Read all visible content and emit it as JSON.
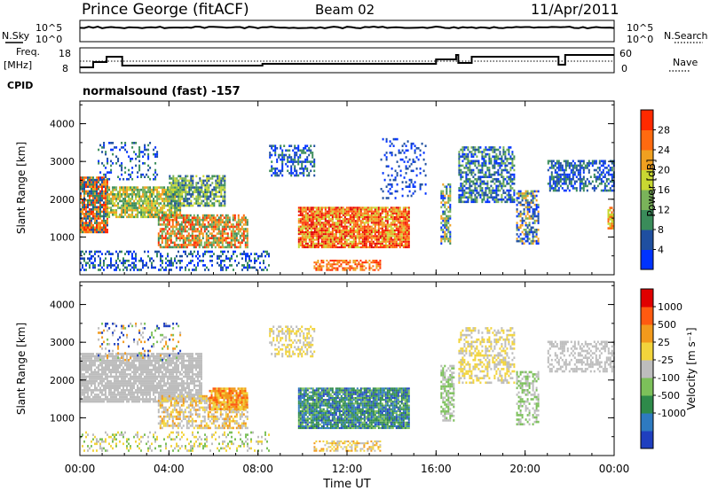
{
  "header": {
    "station": "Prince George (fitACF)",
    "beam": "Beam 02",
    "date": "11/Apr/2011"
  },
  "top_panels": {
    "left_labels": {
      "nsky": "N.Sky",
      "freq": "Freq.",
      "freq_unit": "[MHz]",
      "cpid": "CPID"
    },
    "right_labels": {
      "nsearch": "N.Search",
      "nave": "Nave"
    },
    "noise_ticks": {
      "high": "10^5",
      "low": "10^0"
    },
    "freq_ticks": [
      "18",
      "8"
    ],
    "nave_ticks": [
      "60",
      "0"
    ],
    "cpid_text": "normalsound (fast) -157"
  },
  "colors": {
    "power": [
      "#0033ff",
      "#1f4fa0",
      "#3a8c5a",
      "#7ab35a",
      "#c8d832",
      "#f0a020",
      "#ff6a10",
      "#ff2a00",
      "#e00000"
    ],
    "velocity": [
      "#1f3fbf",
      "#2e7ac0",
      "#2e8a4a",
      "#7cc05a",
      "#bdbdbd",
      "#f2d43c",
      "#f29a1c",
      "#ff5a10",
      "#e00000"
    ]
  },
  "chart_data": [
    {
      "type": "heatmap",
      "name": "power",
      "ylabel": "Slant Range [km]",
      "yticks": [
        "1000",
        "2000",
        "3000",
        "4000"
      ],
      "colorbar_label": "Power [dB]",
      "colorbar_ticks": [
        "4",
        "8",
        "12",
        "16",
        "20",
        "24",
        "28"
      ]
    },
    {
      "type": "heatmap",
      "name": "velocity",
      "ylabel": "Slant Range [km]",
      "yticks": [
        "1000",
        "2000",
        "3000",
        "4000"
      ],
      "colorbar_label": "Velocity [m s⁻¹]",
      "colorbar_ticks": [
        "1000",
        "500",
        "25",
        "-25",
        "-100",
        "-500",
        "-1000"
      ],
      "xlabel": "Time UT",
      "xticks": [
        "00:00",
        "04:00",
        "08:00",
        "12:00",
        "16:00",
        "20:00",
        "00:00"
      ]
    }
  ]
}
